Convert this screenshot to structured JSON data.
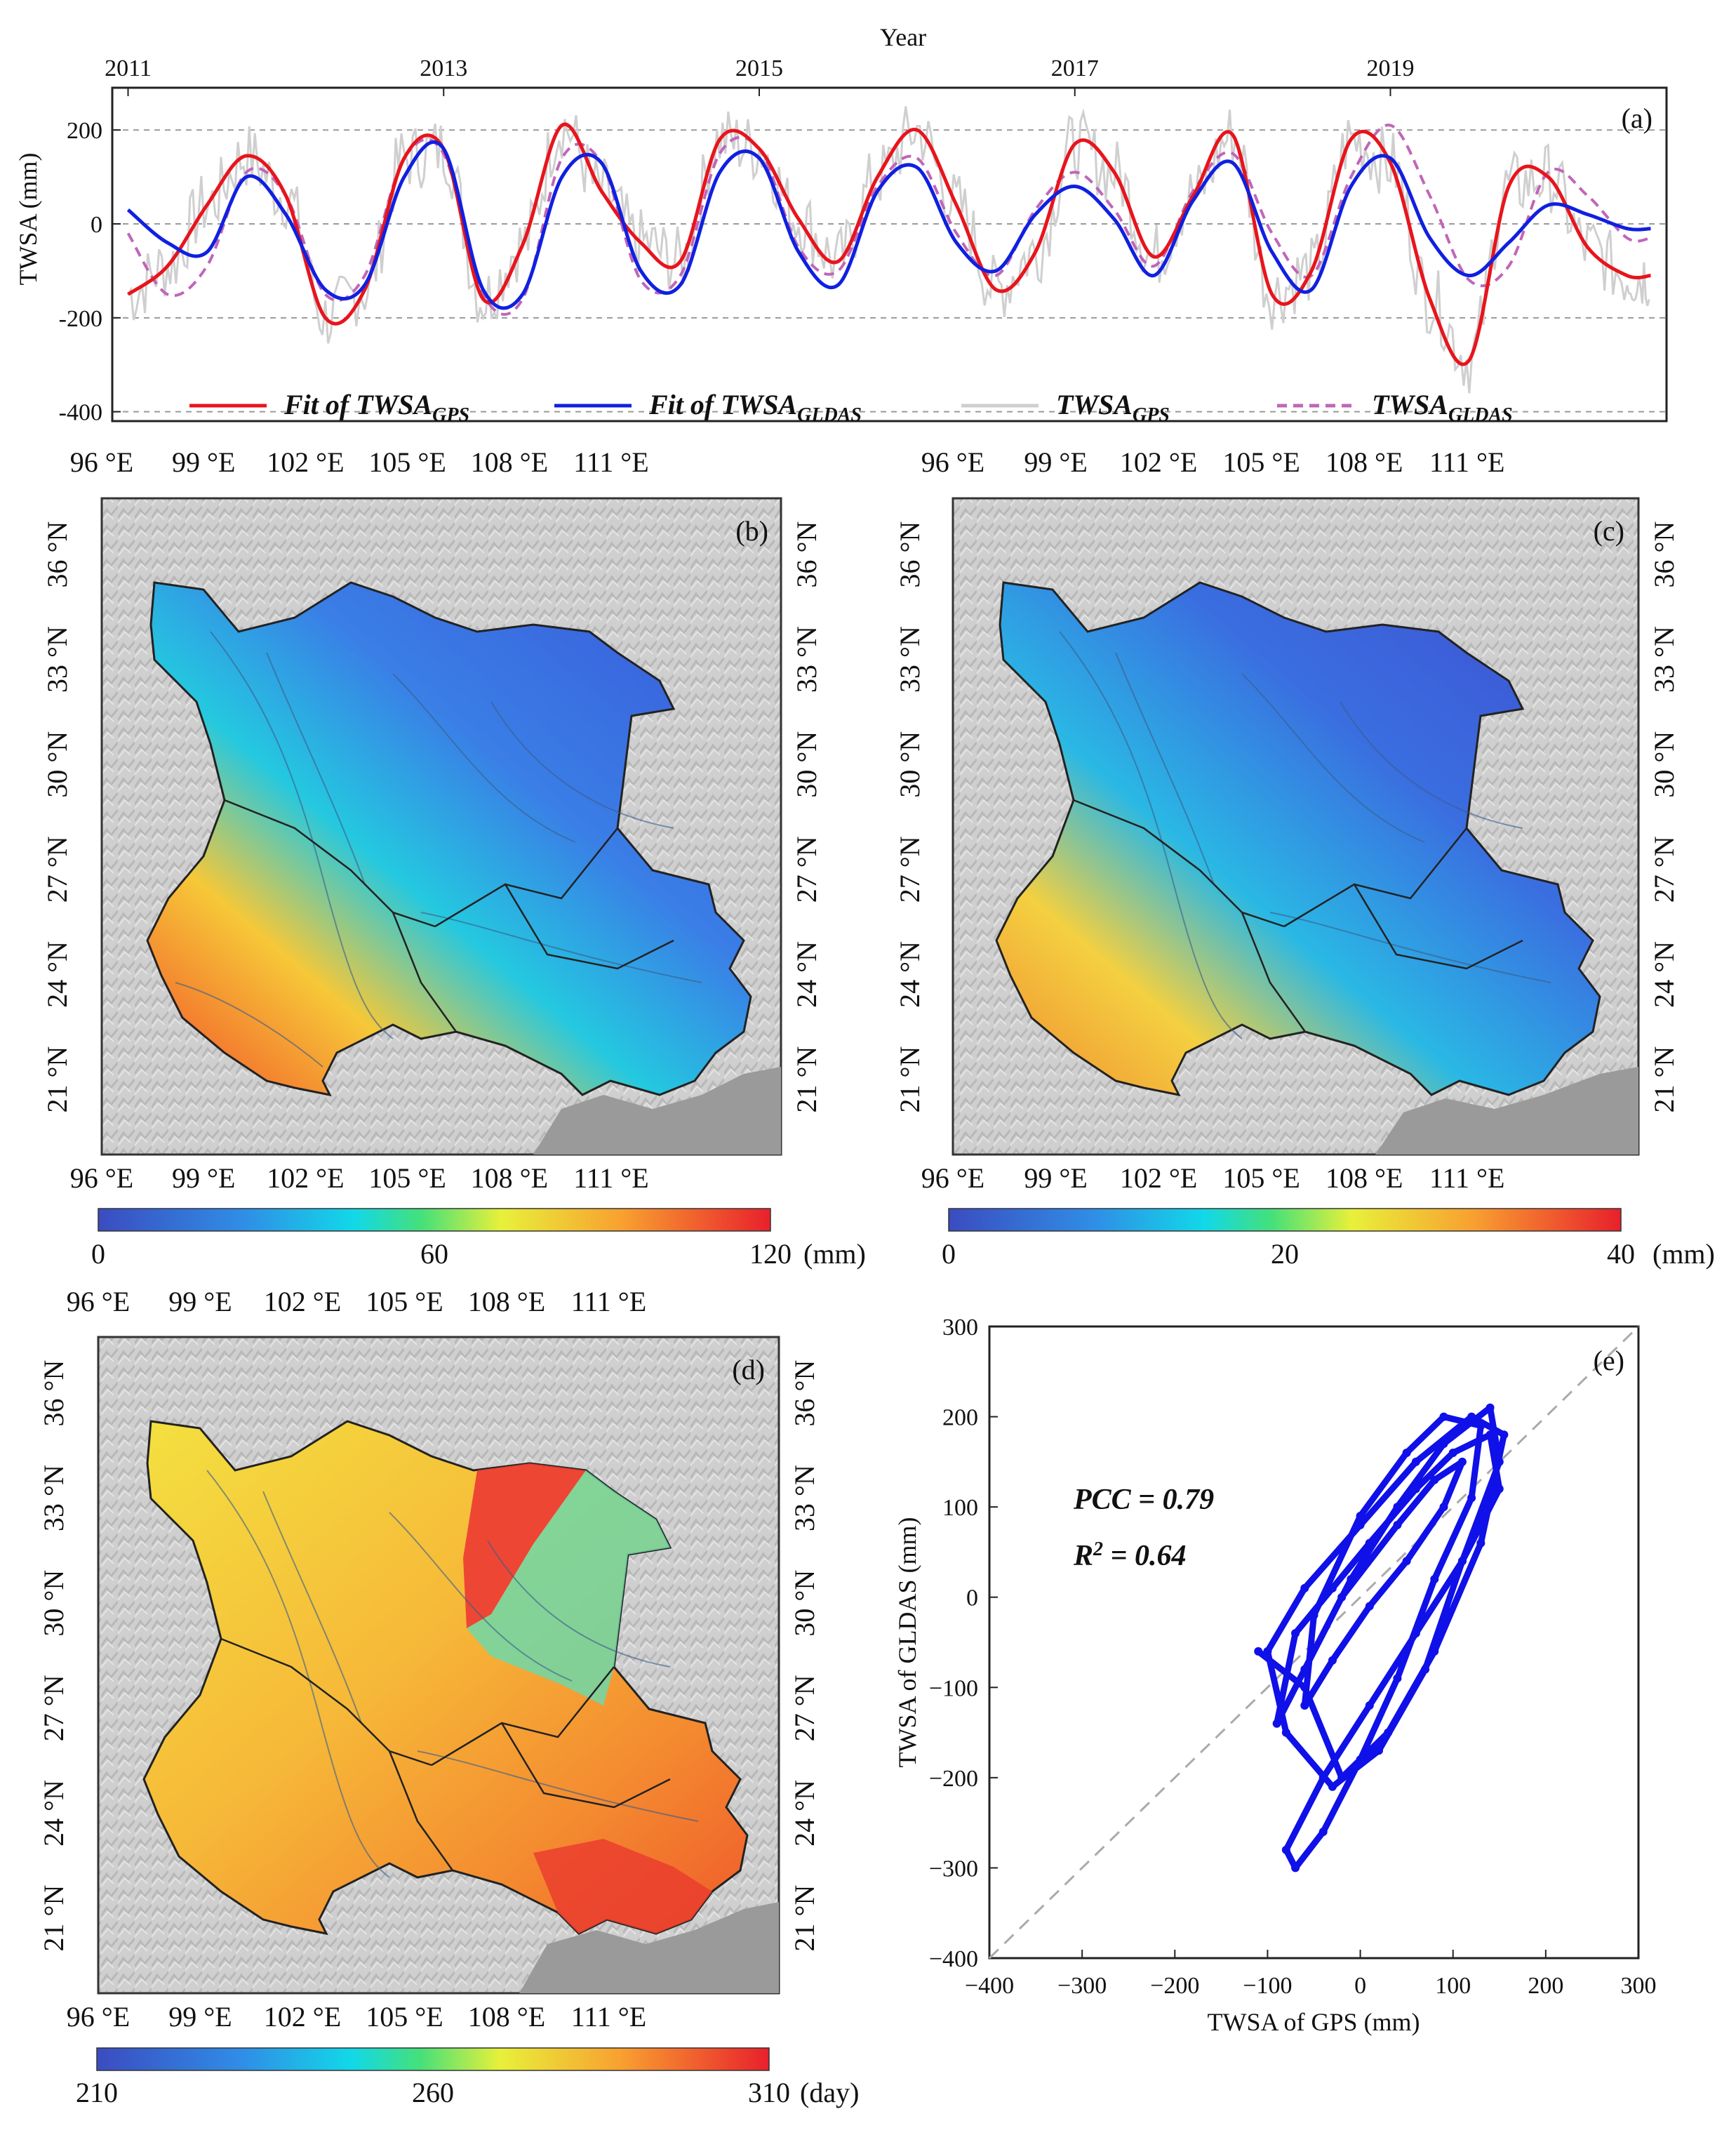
{
  "panel_a": {
    "label": "(a)",
    "top_axis_title": "Year",
    "year_ticks": [
      "2011",
      "2013",
      "2015",
      "2017",
      "2019"
    ],
    "y_ticks": [
      "200",
      "0",
      "-200",
      "-400"
    ],
    "ylabel": "TWSA (mm)",
    "legend": [
      {
        "main": "Fit of TWSA",
        "sub": "GPS",
        "color": "#e8141c",
        "style": "solid"
      },
      {
        "main": "Fit of TWSA",
        "sub": "GLDAS",
        "color": "#1020e0",
        "style": "solid"
      },
      {
        "main": "TWSA",
        "sub": "GPS",
        "color": "#cfcfcf",
        "style": "solid"
      },
      {
        "main": "TWSA",
        "sub": "GLDAS",
        "color": "#c066b8",
        "style": "dashed"
      }
    ]
  },
  "maps": {
    "lon_ticks": [
      "96 °E",
      "99 °E",
      "102 °E",
      "105 °E",
      "108 °E",
      "111 °E"
    ],
    "lat_ticks": [
      "36 °N",
      "33 °N",
      "30 °N",
      "27 °N",
      "24 °N",
      "21 °N"
    ],
    "b": {
      "label": "(b)",
      "colorbar": [
        "0",
        "60",
        "120"
      ],
      "unit": "(mm)"
    },
    "c": {
      "label": "(c)",
      "colorbar": [
        "0",
        "20",
        "40"
      ],
      "unit": "(mm)"
    },
    "d": {
      "label": "(d)",
      "colorbar": [
        "210",
        "260",
        "310"
      ],
      "unit": "(day)"
    }
  },
  "panel_e": {
    "label": "(e)",
    "pcc": "PCC = 0.79",
    "r2_main": "R",
    "r2_sup": "2",
    "r2_rest": " = 0.64",
    "xlabel": "TWSA of GPS (mm)",
    "ylabel": "TWSA of  GLDAS (mm)",
    "x_ticks": [
      "−400",
      "−300",
      "−200",
      "−100",
      "0",
      "100",
      "200",
      "300"
    ],
    "y_ticks": [
      "300",
      "200",
      "100",
      "0",
      "−100",
      "−200",
      "−300",
      "−400"
    ]
  },
  "chart_data": [
    {
      "type": "line",
      "title": "(a)",
      "xlabel": "Year",
      "ylabel": "TWSA (mm)",
      "xlim": [
        2010.9,
        2020.75
      ],
      "ylim": [
        -420,
        290
      ],
      "series": [
        {
          "name": "Fit of TWSA GPS",
          "x": [
            2011.0,
            2011.25,
            2011.5,
            2011.75,
            2012.0,
            2012.25,
            2012.5,
            2012.75,
            2013.0,
            2013.25,
            2013.5,
            2013.75,
            2014.0,
            2014.25,
            2014.5,
            2014.75,
            2015.0,
            2015.25,
            2015.5,
            2015.75,
            2016.0,
            2016.25,
            2016.5,
            2016.75,
            2017.0,
            2017.25,
            2017.5,
            2017.75,
            2018.0,
            2018.25,
            2018.5,
            2018.75,
            2019.0,
            2019.25,
            2019.5,
            2019.75,
            2020.0,
            2020.25,
            2020.5,
            2020.65
          ],
          "values": [
            -150,
            -90,
            40,
            145,
            60,
            -200,
            -140,
            140,
            160,
            -160,
            -45,
            210,
            70,
            -40,
            -80,
            180,
            160,
            10,
            -80,
            100,
            200,
            40,
            -140,
            -60,
            170,
            110,
            -70,
            60,
            190,
            -150,
            -100,
            180,
            130,
            -160,
            -290,
            80,
            100,
            -50,
            -110,
            -110
          ]
        },
        {
          "name": "Fit of TWSA GLDAS",
          "x": [
            2011.0,
            2011.25,
            2011.5,
            2011.75,
            2012.0,
            2012.25,
            2012.5,
            2012.75,
            2013.0,
            2013.25,
            2013.5,
            2013.75,
            2014.0,
            2014.25,
            2014.5,
            2014.75,
            2015.0,
            2015.25,
            2015.5,
            2015.75,
            2016.0,
            2016.25,
            2016.5,
            2016.75,
            2017.0,
            2017.25,
            2017.5,
            2017.75,
            2018.0,
            2018.25,
            2018.5,
            2018.75,
            2019.0,
            2019.25,
            2019.5,
            2019.75,
            2020.0,
            2020.25,
            2020.5,
            2020.65
          ],
          "values": [
            30,
            -40,
            -60,
            100,
            20,
            -140,
            -130,
            100,
            160,
            -140,
            -150,
            100,
            130,
            -100,
            -130,
            110,
            140,
            -60,
            -130,
            70,
            120,
            -40,
            -100,
            20,
            80,
            10,
            -110,
            50,
            130,
            -60,
            -140,
            80,
            140,
            -30,
            -110,
            -40,
            40,
            20,
            -10,
            -10
          ]
        },
        {
          "name": "TWSA GLDAS",
          "x": [
            2011.0,
            2011.25,
            2011.5,
            2011.75,
            2012.0,
            2012.25,
            2012.5,
            2012.75,
            2013.0,
            2013.25,
            2013.5,
            2013.75,
            2014.0,
            2014.25,
            2014.5,
            2014.75,
            2015.0,
            2015.25,
            2015.5,
            2015.75,
            2016.0,
            2016.25,
            2016.5,
            2016.75,
            2017.0,
            2017.25,
            2017.5,
            2017.75,
            2018.0,
            2018.25,
            2018.5,
            2018.75,
            2019.0,
            2019.25,
            2019.5,
            2019.75,
            2020.0,
            2020.25,
            2020.5,
            2020.65
          ],
          "values": [
            -20,
            -150,
            -90,
            110,
            60,
            -150,
            -110,
            140,
            150,
            -150,
            -160,
            140,
            130,
            -120,
            -110,
            150,
            160,
            -50,
            -100,
            80,
            140,
            -20,
            -110,
            30,
            110,
            30,
            -90,
            70,
            150,
            -20,
            -110,
            100,
            210,
            60,
            -120,
            -90,
            110,
            60,
            -30,
            -30
          ]
        }
      ]
    },
    {
      "type": "scatter",
      "title": "(e)",
      "xlabel": "TWSA of GPS (mm)",
      "ylabel": "TWSA of  GLDAS (mm)",
      "xlim": [
        -400,
        300
      ],
      "ylim": [
        -400,
        300
      ],
      "annotations": [
        "PCC = 0.79",
        "R2 = 0.64"
      ],
      "reference_line": "1:1 dashed",
      "x": [
        -110,
        -60,
        -20,
        30,
        80,
        130,
        155,
        120,
        60,
        0,
        -60,
        -100,
        -80,
        -30,
        20,
        70,
        110,
        150,
        140,
        90,
        40,
        -10,
        -60,
        -90,
        -70,
        -30,
        10,
        60,
        100,
        140,
        150,
        110,
        60,
        10,
        -40,
        -80,
        -70,
        -40,
        0,
        40,
        80,
        120,
        130,
        90,
        50,
        0,
        -50,
        -60,
        -30,
        10,
        50,
        90,
        110,
        80,
        40,
        -20
      ],
      "y": [
        -60,
        -100,
        -200,
        -150,
        -60,
        60,
        180,
        200,
        150,
        80,
        10,
        -60,
        -150,
        -210,
        -170,
        -80,
        40,
        150,
        210,
        170,
        100,
        20,
        -80,
        -140,
        -40,
        10,
        60,
        120,
        160,
        180,
        120,
        40,
        -40,
        -120,
        -200,
        -280,
        -300,
        -260,
        -180,
        -90,
        20,
        110,
        190,
        200,
        160,
        90,
        -20,
        -120,
        -70,
        -10,
        40,
        100,
        150,
        130,
        80,
        0
      ]
    }
  ]
}
